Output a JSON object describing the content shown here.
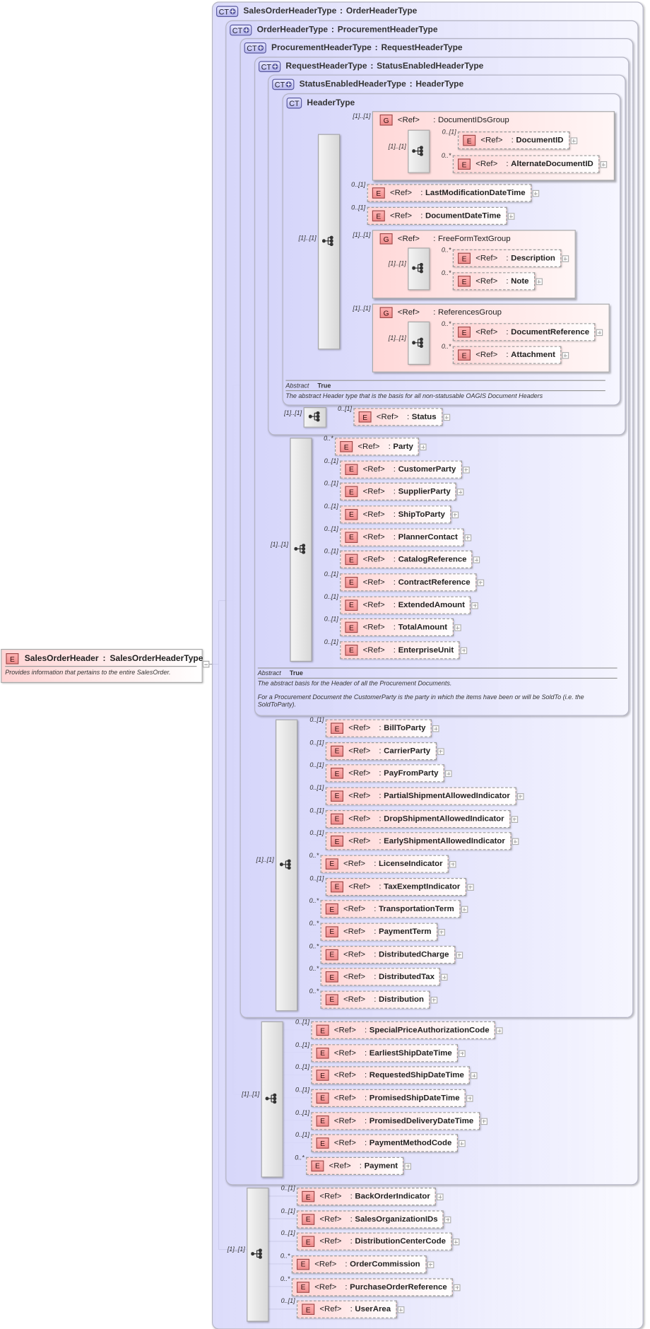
{
  "labels": {
    "ref": "<Ref>",
    "sep": ":",
    "abstract_key": "Abstract",
    "element_badge": "E",
    "group_badge": "G",
    "ct_badge": "CT"
  },
  "root": {
    "name": "SalesOrderHeader",
    "sep": ":",
    "type": "SalesOrderHeaderType",
    "description": "Provides information that pertains to the entire SalesOrder."
  },
  "types": [
    {
      "name": "SalesOrderHeaderType",
      "base": "OrderHeaderType",
      "extends": true
    },
    {
      "name": "OrderHeaderType",
      "base": "ProcurementHeaderType",
      "extends": true
    },
    {
      "name": "ProcurementHeaderType",
      "base": "RequestHeaderType",
      "extends": true
    },
    {
      "name": "RequestHeaderType",
      "base": "StatusEnabledHeaderType",
      "extends": true
    },
    {
      "name": "StatusEnabledHeaderType",
      "base": "HeaderType",
      "extends": true
    },
    {
      "name": "HeaderType",
      "base": "",
      "extends": false
    }
  ],
  "header_type": {
    "sequence_card": "[1]..[1]",
    "groups": [
      {
        "card": "[1]..[1]",
        "name": "DocumentIDsGroup",
        "sequence_card": "[1]..[1]",
        "items": [
          {
            "card": "0..[1]",
            "name": "DocumentID"
          },
          {
            "card": "0..*",
            "name": "AlternateDocumentID"
          }
        ]
      },
      {
        "card": "[1]..[1]",
        "name": "FreeFormTextGroup",
        "sequence_card": "[1]..[1]",
        "items": [
          {
            "card": "0..*",
            "name": "Description"
          },
          {
            "card": "0..*",
            "name": "Note"
          }
        ]
      },
      {
        "card": "[1]..[1]",
        "name": "ReferencesGroup",
        "sequence_card": "[1]..[1]",
        "items": [
          {
            "card": "0..*",
            "name": "DocumentReference"
          },
          {
            "card": "0..*",
            "name": "Attachment"
          }
        ]
      }
    ],
    "elements": [
      {
        "card": "0..[1]",
        "name": "LastModificationDateTime"
      },
      {
        "card": "0..[1]",
        "name": "DocumentDateTime"
      }
    ],
    "abstract": "True",
    "description": "The abstract Header type that is the basis for all non-statusable OAGIS Document Headers"
  },
  "status_enabled": {
    "sequence_card": "[1]..[1]",
    "items": [
      {
        "card": "0..[1]",
        "name": "Status"
      }
    ]
  },
  "request": {
    "sequence_card": "[1]..[1]",
    "items": [
      {
        "card": "0..*",
        "name": "Party"
      },
      {
        "card": "0..[1]",
        "name": "CustomerParty"
      },
      {
        "card": "0..[1]",
        "name": "SupplierParty"
      },
      {
        "card": "0..[1]",
        "name": "ShipToParty"
      },
      {
        "card": "0..[1]",
        "name": "PlannerContact"
      },
      {
        "card": "0..[1]",
        "name": "CatalogReference"
      },
      {
        "card": "0..[1]",
        "name": "ContractReference"
      },
      {
        "card": "0..[1]",
        "name": "ExtendedAmount"
      },
      {
        "card": "0..[1]",
        "name": "TotalAmount"
      },
      {
        "card": "0..[1]",
        "name": "EnterpriseUnit"
      }
    ],
    "abstract": "True",
    "description": "The abstract basis for the Header of all the Procurement Documents.",
    "description2": "For a Procurement Document the CustomerParty is the party in which the items have been or will be SoldTo (i.e. the SoldToParty)."
  },
  "procurement": {
    "sequence_card": "[1]..[1]",
    "items": [
      {
        "card": "0..[1]",
        "name": "BillToParty"
      },
      {
        "card": "0..[1]",
        "name": "CarrierParty"
      },
      {
        "card": "0..[1]",
        "name": "PayFromParty"
      },
      {
        "card": "0..[1]",
        "name": "PartialShipmentAllowedIndicator"
      },
      {
        "card": "0..[1]",
        "name": "DropShipmentAllowedIndicator"
      },
      {
        "card": "0..[1]",
        "name": "EarlyShipmentAllowedIndicator"
      },
      {
        "card": "0..*",
        "name": "LicenseIndicator"
      },
      {
        "card": "0..[1]",
        "name": "TaxExemptIndicator"
      },
      {
        "card": "0..*",
        "name": "TransportationTerm"
      },
      {
        "card": "0..*",
        "name": "PaymentTerm"
      },
      {
        "card": "0..*",
        "name": "DistributedCharge"
      },
      {
        "card": "0..*",
        "name": "DistributedTax"
      },
      {
        "card": "0..*",
        "name": "Distribution"
      }
    ]
  },
  "order": {
    "sequence_card": "[1]..[1]",
    "items": [
      {
        "card": "0..[1]",
        "name": "SpecialPriceAuthorizationCode"
      },
      {
        "card": "0..[1]",
        "name": "EarliestShipDateTime"
      },
      {
        "card": "0..[1]",
        "name": "RequestedShipDateTime"
      },
      {
        "card": "0..[1]",
        "name": "PromisedShipDateTime"
      },
      {
        "card": "0..[1]",
        "name": "PromisedDeliveryDateTime"
      },
      {
        "card": "0..[1]",
        "name": "PaymentMethodCode"
      },
      {
        "card": "0..*",
        "name": "Payment"
      }
    ]
  },
  "sales": {
    "sequence_card": "[1]..[1]",
    "items": [
      {
        "card": "0..[1]",
        "name": "BackOrderIndicator"
      },
      {
        "card": "0..[1]",
        "name": "SalesOrganizationIDs"
      },
      {
        "card": "0..[1]",
        "name": "DistributionCenterCode"
      },
      {
        "card": "0..*",
        "name": "OrderCommission"
      },
      {
        "card": "0..*",
        "name": "PurchaseOrderReference"
      },
      {
        "card": "0..[1]",
        "name": "UserArea"
      }
    ]
  }
}
